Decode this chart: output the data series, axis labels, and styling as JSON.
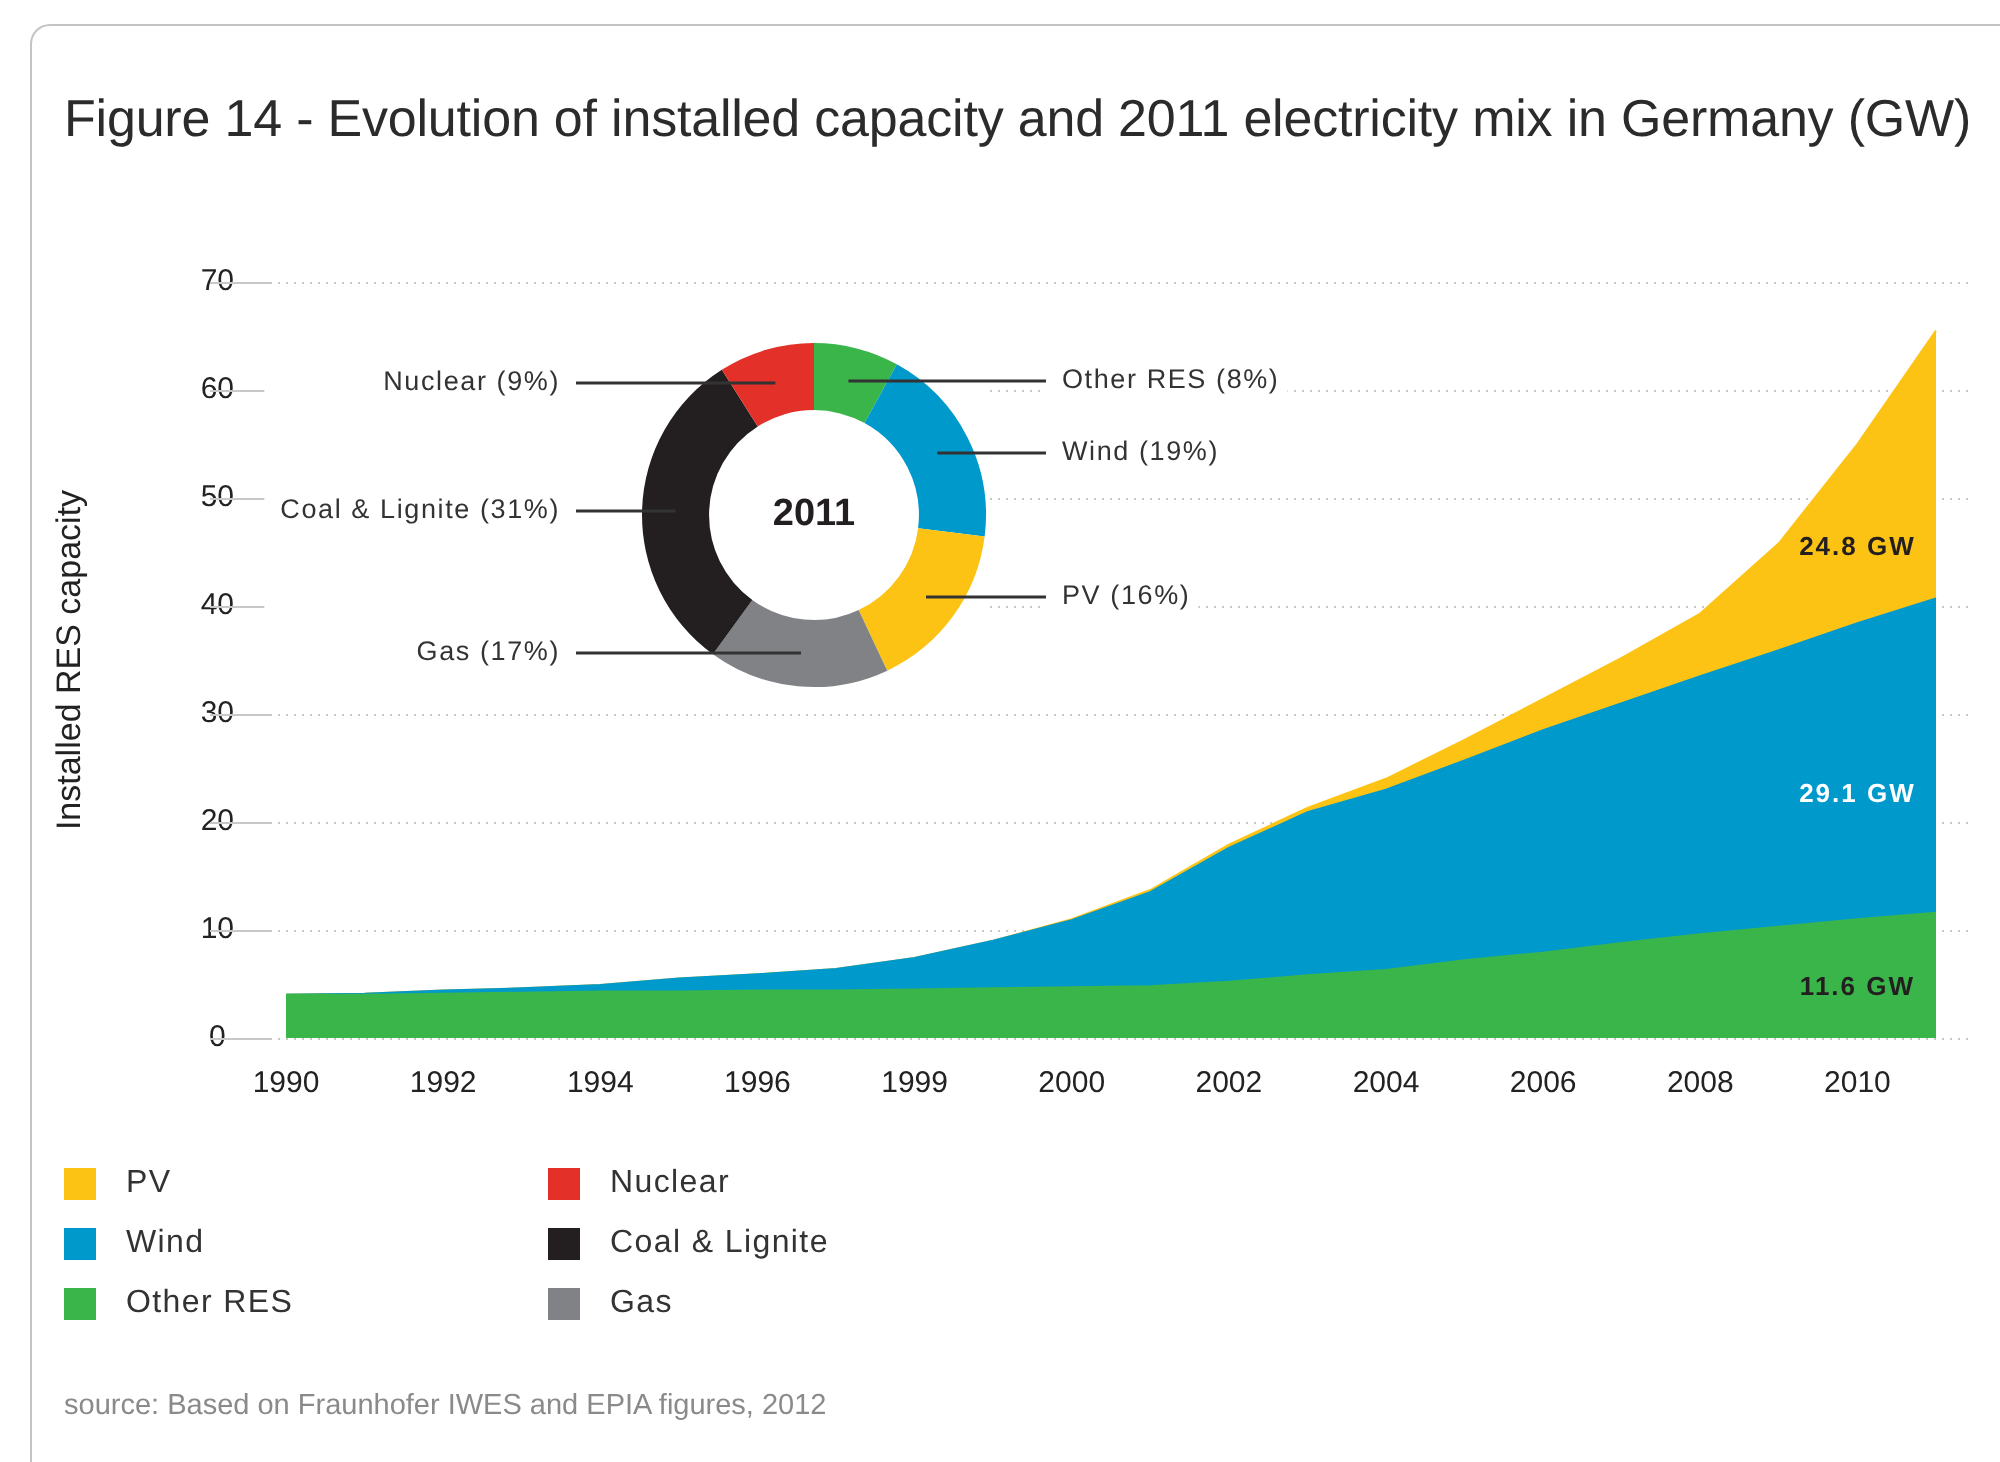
{
  "chart_data": [
    {
      "type": "area",
      "title": "Figure 14 - Evolution of installed capacity and 2011 electricity mix in Germany (GW)",
      "ylabel": "Installed RES capacity",
      "categories": [
        "1990",
        null,
        "1992",
        null,
        "1994",
        null,
        "1996",
        null,
        "1999",
        null,
        "2000",
        null,
        "2002",
        null,
        "2004",
        null,
        "2006",
        null,
        "2008",
        null,
        "2010",
        null
      ],
      "stacked": true,
      "series": [
        {
          "name": "Other RES",
          "color": "#3ab54a",
          "values": [
            4.0,
            4.0,
            4.1,
            4.2,
            4.3,
            4.3,
            4.4,
            4.4,
            4.5,
            4.6,
            4.7,
            4.8,
            5.2,
            5.8,
            6.3,
            7.2,
            7.9,
            8.8,
            9.6,
            10.3,
            11.0,
            11.6
          ]
        },
        {
          "name": "Wind",
          "color": "#0099cc",
          "values": [
            0.0,
            0.1,
            0.3,
            0.4,
            0.6,
            1.2,
            1.5,
            2.0,
            2.9,
            4.4,
            6.2,
            8.7,
            12.4,
            15.1,
            16.7,
            18.5,
            20.6,
            22.2,
            23.9,
            25.6,
            27.4,
            29.1
          ]
        },
        {
          "name": "PV",
          "color": "#fdc314",
          "values": [
            0,
            0,
            0,
            0,
            0,
            0,
            0,
            0,
            0,
            0,
            0.1,
            0.2,
            0.3,
            0.4,
            1.0,
            1.9,
            2.9,
            4.2,
            5.8,
            9.9,
            16.6,
            24.8
          ]
        }
      ],
      "ylim": [
        0,
        70
      ],
      "yticks": [
        0,
        10,
        20,
        30,
        40,
        50,
        60,
        70
      ],
      "grid": "y",
      "legend": "bottom",
      "annotations": [
        "24.8 GW",
        "29.1 GW",
        "11.6 GW",
        "source: Based on Fraunhofer IWES and EPIA figures, 2012"
      ]
    },
    {
      "type": "donut",
      "title": "2011",
      "categories": [
        "Other RES",
        "Wind",
        "PV",
        "Gas",
        "Coal & Lignite",
        "Nuclear"
      ],
      "values": [
        8,
        19,
        16,
        17,
        31,
        9
      ],
      "colors": [
        "#3ab54a",
        "#0099cc",
        "#fdc314",
        "#808285",
        "#231f20",
        "#e3312a"
      ],
      "value_labels": [
        "(8%)",
        "(19%)",
        "(16%)",
        "(17%)",
        "(31%)",
        "(9%)"
      ],
      "legend": "bottom"
    }
  ]
}
